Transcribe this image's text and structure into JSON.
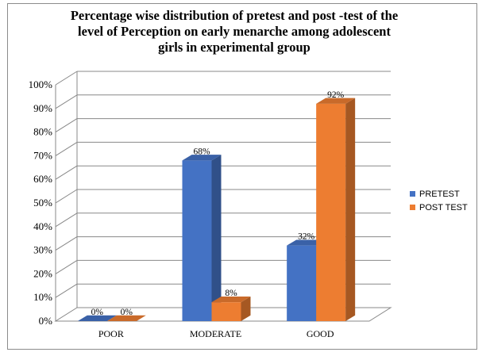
{
  "chart_data": {
    "type": "bar",
    "title": "Percentage wise distribution of pretest and post -test of the level of Perception on early menarche among adolescent girls in experimental group",
    "title_lines": [
      "Percentage wise distribution of pretest and post -test of the",
      "level of Perception on early menarche  among adolescent",
      "girls in experimental group"
    ],
    "categories": [
      "POOR",
      "MODERATE",
      "GOOD"
    ],
    "series": [
      {
        "name": "PRETEST",
        "values": [
          0,
          68,
          32
        ],
        "labels": [
          "0%",
          "68%",
          "32%"
        ],
        "color": "#4472C4"
      },
      {
        "name": "POST TEST",
        "values": [
          0,
          8,
          92
        ],
        "labels": [
          "0%",
          "8%",
          "92%"
        ],
        "color": "#ED7D31"
      }
    ],
    "yticks": [
      "0%",
      "10%",
      "20%",
      "30%",
      "40%",
      "50%",
      "60%",
      "70%",
      "80%",
      "90%",
      "100%"
    ],
    "ylim": [
      0,
      100
    ],
    "xlabel": "",
    "ylabel": "",
    "grid": true,
    "legend_position": "right"
  }
}
